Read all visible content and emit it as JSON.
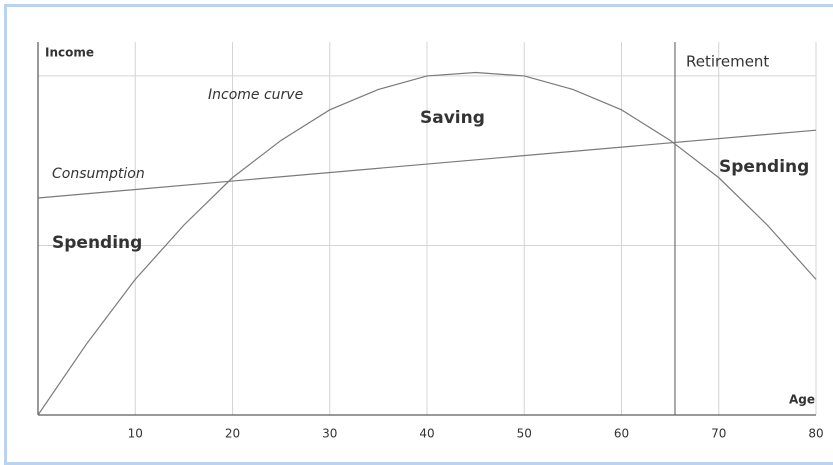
{
  "chart_data": {
    "type": "line",
    "xlabel": "Age",
    "ylabel": "Income",
    "xlim": [
      0,
      80
    ],
    "xticks": [
      10,
      20,
      30,
      40,
      50,
      60,
      70,
      80
    ],
    "ylim": [
      0,
      2.2
    ],
    "ygrid": [
      1,
      2
    ],
    "grid": true,
    "series": [
      {
        "name": "Income curve",
        "color": "#7a7a7a",
        "x": [
          0,
          5,
          10,
          15,
          20,
          25,
          30,
          35,
          40,
          45,
          50,
          55,
          60,
          65,
          70,
          75,
          80
        ],
        "values": [
          0,
          0.42,
          0.8,
          1.12,
          1.4,
          1.62,
          1.8,
          1.92,
          2.0,
          2.02,
          2.0,
          1.92,
          1.8,
          1.62,
          1.4,
          1.12,
          0.8
        ]
      },
      {
        "name": "Consumption",
        "color": "#7a7a7a",
        "x": [
          0,
          80
        ],
        "values": [
          1.28,
          1.68
        ]
      }
    ],
    "retirement": {
      "label": "Retirement",
      "x": 65.5
    },
    "annotations": [
      "Saving",
      "Spending",
      "Spending"
    ]
  }
}
